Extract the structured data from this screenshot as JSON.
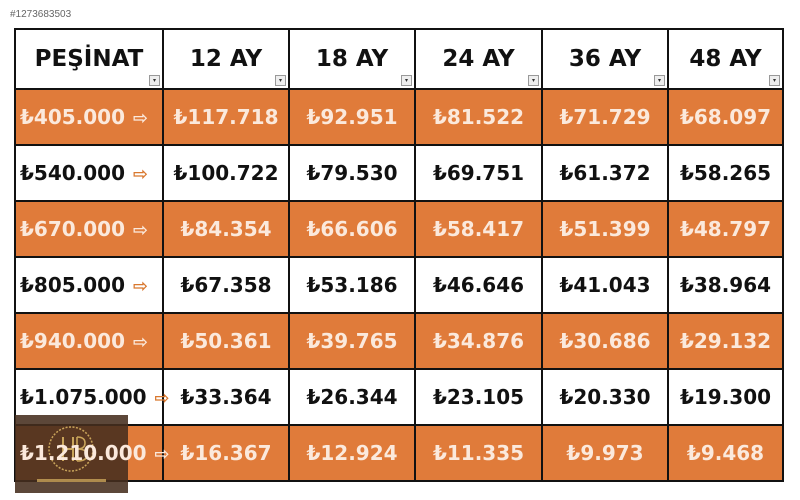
{
  "listing_id": "#1273683503",
  "headers": [
    "PEŞİNAT",
    "12 AY",
    "18 AY",
    "24 AY",
    "36 AY",
    "48 AY"
  ],
  "rows": [
    {
      "down": "₺405.000",
      "values": [
        "₺117.718",
        "₺92.951",
        "₺81.522",
        "₺71.729",
        "₺68.097"
      ]
    },
    {
      "down": "₺540.000",
      "values": [
        "₺100.722",
        "₺79.530",
        "₺69.751",
        "₺61.372",
        "₺58.265"
      ]
    },
    {
      "down": "₺670.000",
      "values": [
        "₺84.354",
        "₺66.606",
        "₺58.417",
        "₺51.399",
        "₺48.797"
      ]
    },
    {
      "down": "₺805.000",
      "values": [
        "₺67.358",
        "₺53.186",
        "₺46.646",
        "₺41.043",
        "₺38.964"
      ]
    },
    {
      "down": "₺940.000",
      "values": [
        "₺50.361",
        "₺39.765",
        "₺34.876",
        "₺30.686",
        "₺29.132"
      ]
    },
    {
      "down": "₺1.075.000",
      "values": [
        "₺33.364",
        "₺26.344",
        "₺23.105",
        "₺20.330",
        "₺19.300"
      ]
    },
    {
      "down": "₺1.210.000",
      "values": [
        "₺16.367",
        "₺12.924",
        "₺11.335",
        "₺9.973",
        "₺9.468"
      ]
    }
  ],
  "arrow": "⇨",
  "logo_text": "HAKAN ÖZDEMİR MOTORS",
  "colors": {
    "orange": "#e07b3a",
    "border": "#111111"
  }
}
